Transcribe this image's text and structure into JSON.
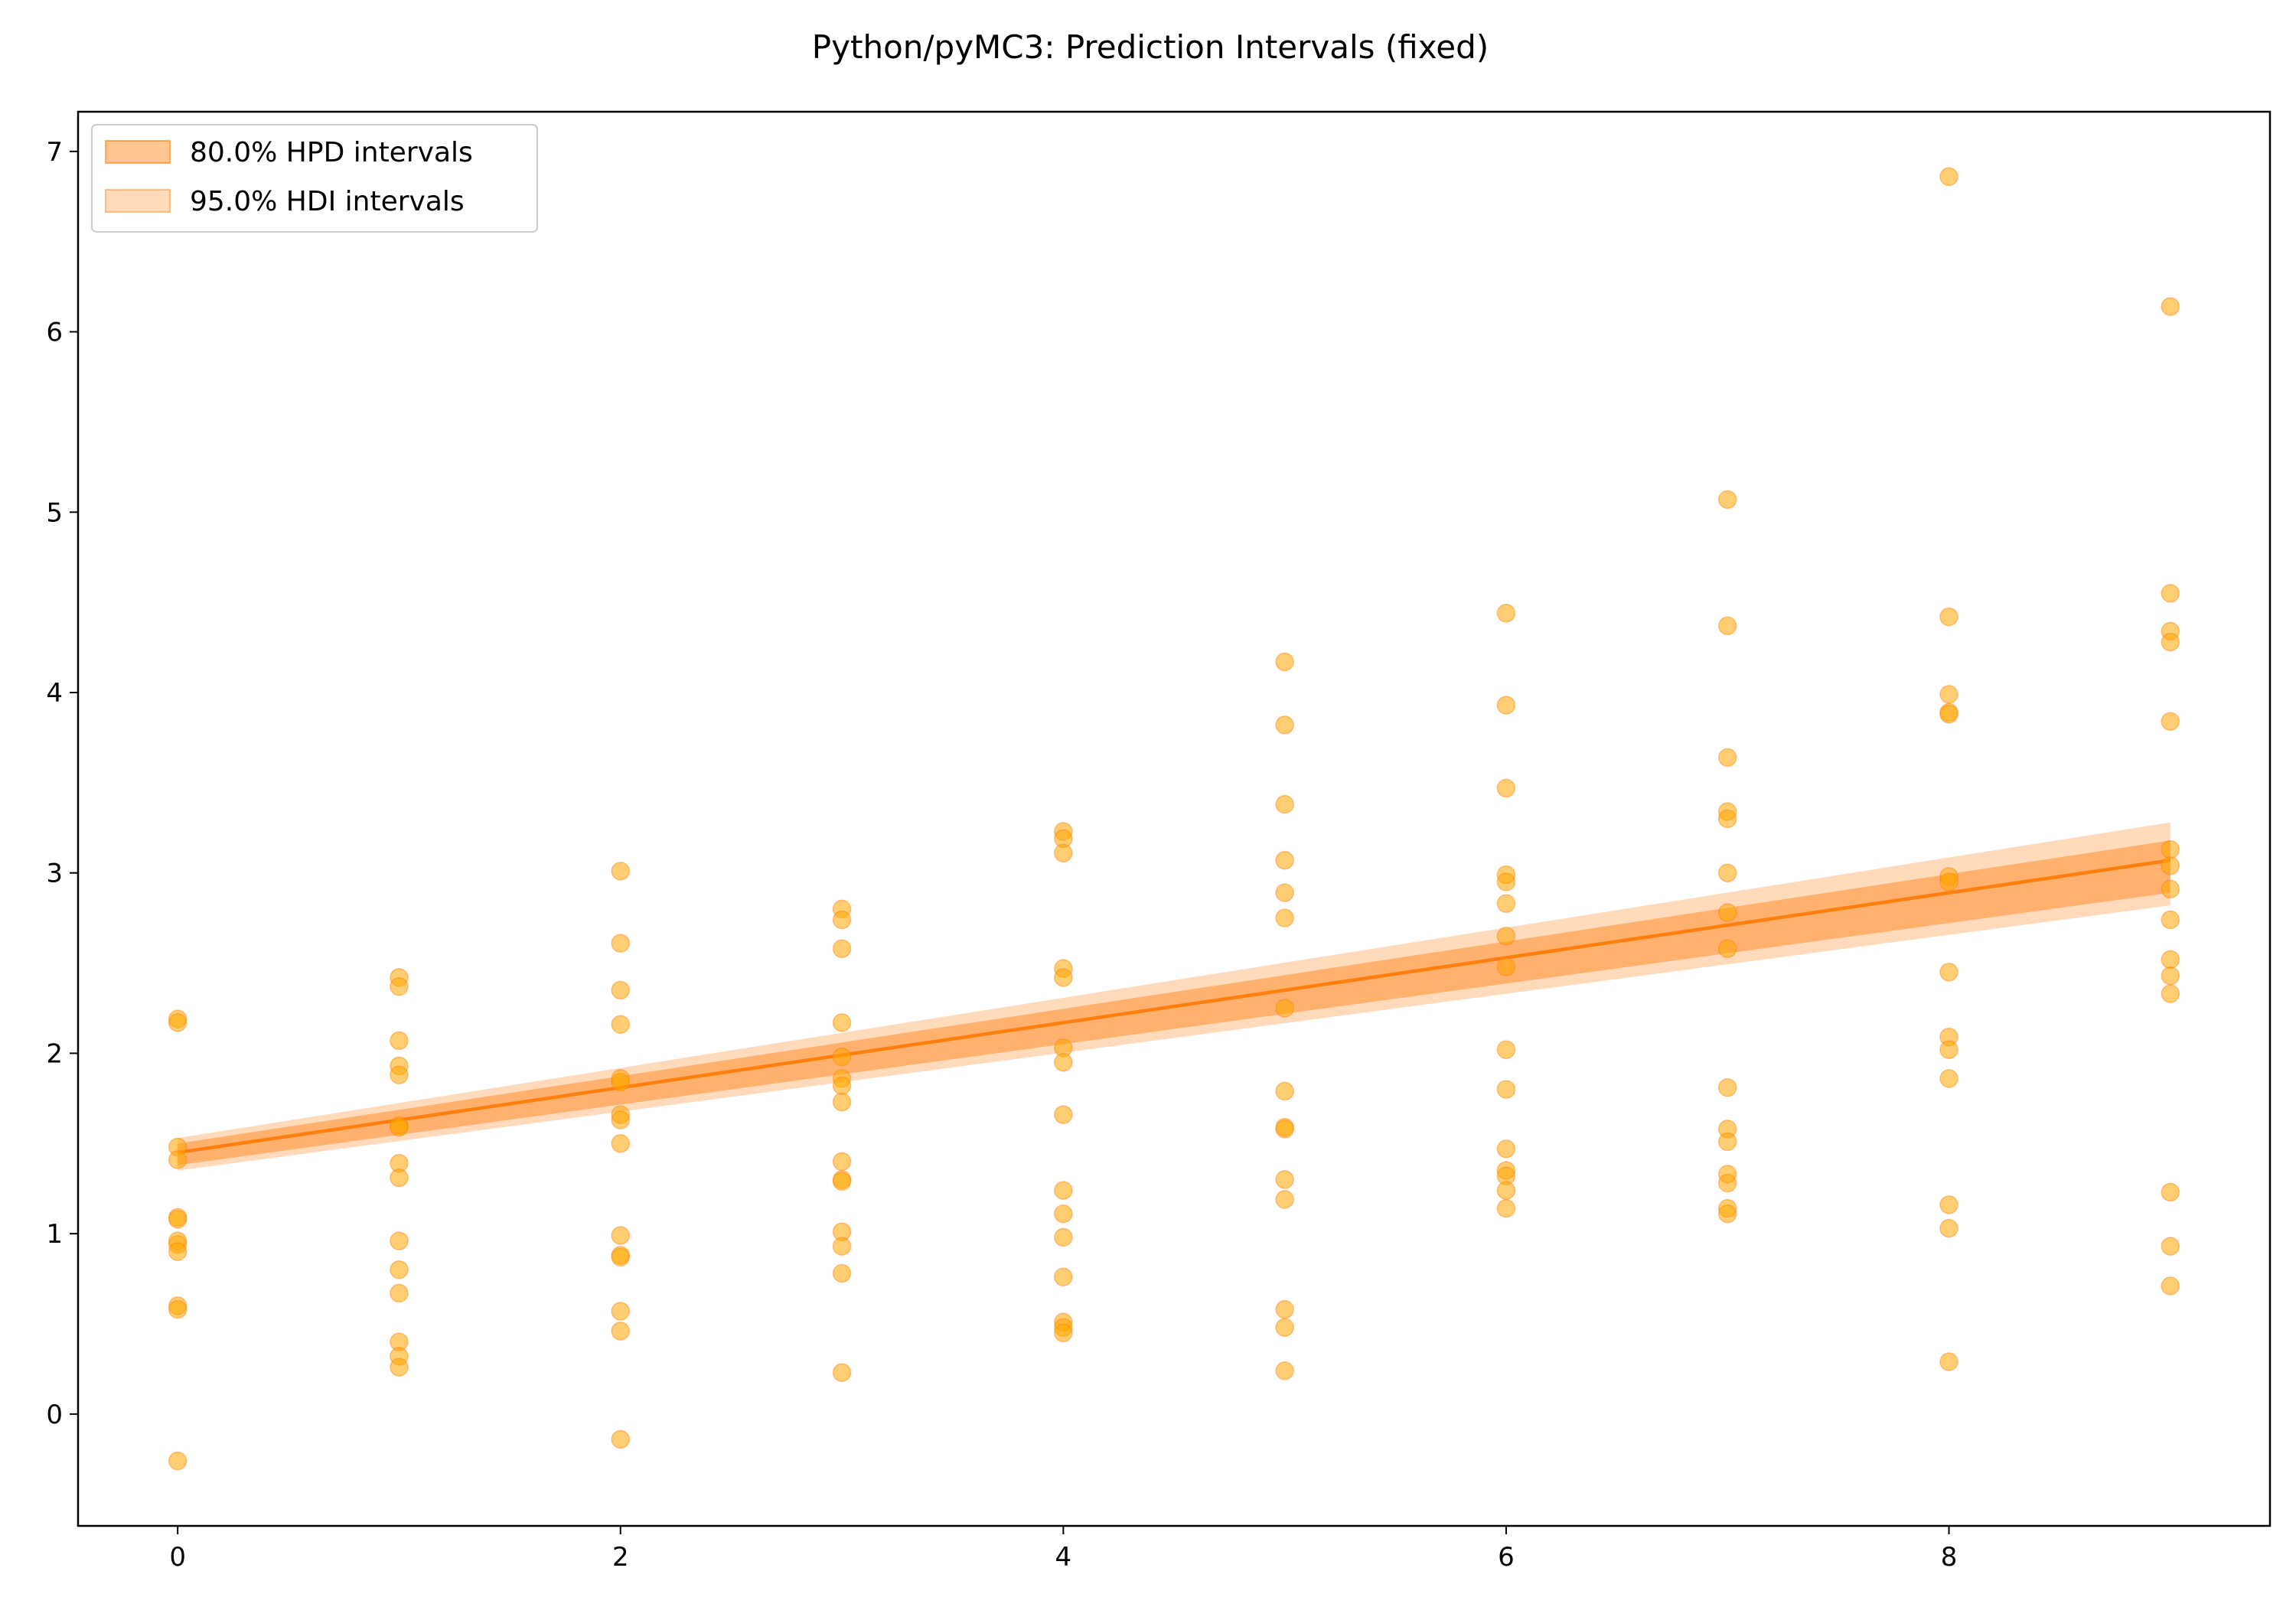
{
  "colors": {
    "accent": "#ff7f0e",
    "point_fill": "#ffa500",
    "hpd_fill": "#ff7f0e",
    "hdi_fill": "#ff9940",
    "axis": "#000000",
    "background": "#ffffff"
  },
  "chart_data": {
    "type": "scatter",
    "title": "Python/pyMC3: Prediction Intervals (fixed)",
    "xlabel": "",
    "ylabel": "",
    "xlim": [
      -0.45,
      9.45
    ],
    "ylim": [
      -0.62,
      7.22
    ],
    "x_ticks": [
      0,
      2,
      4,
      6,
      8
    ],
    "y_ticks": [
      0,
      1,
      2,
      3,
      4,
      5,
      6,
      7
    ],
    "grid": false,
    "legend_position": "top-left",
    "legend": [
      {
        "label": "80.0% HPD intervals",
        "color": "#ff7f0e"
      },
      {
        "label": "95.0% HDI intervals",
        "color": "#ff9940"
      }
    ],
    "points": [
      {
        "x": 0,
        "y": 2.19
      },
      {
        "x": 0,
        "y": 2.17
      },
      {
        "x": 0,
        "y": 1.48
      },
      {
        "x": 0,
        "y": 1.41
      },
      {
        "x": 0,
        "y": 1.09
      },
      {
        "x": 0,
        "y": 1.08
      },
      {
        "x": 0,
        "y": 0.96
      },
      {
        "x": 0,
        "y": 0.94
      },
      {
        "x": 0,
        "y": 0.9
      },
      {
        "x": 0,
        "y": 0.6
      },
      {
        "x": 0,
        "y": 0.58
      },
      {
        "x": 0,
        "y": -0.26
      },
      {
        "x": 1,
        "y": 2.42
      },
      {
        "x": 1,
        "y": 2.37
      },
      {
        "x": 1,
        "y": 2.07
      },
      {
        "x": 1,
        "y": 1.93
      },
      {
        "x": 1,
        "y": 1.88
      },
      {
        "x": 1,
        "y": 1.6
      },
      {
        "x": 1,
        "y": 1.59
      },
      {
        "x": 1,
        "y": 1.39
      },
      {
        "x": 1,
        "y": 1.31
      },
      {
        "x": 1,
        "y": 0.96
      },
      {
        "x": 1,
        "y": 0.8
      },
      {
        "x": 1,
        "y": 0.67
      },
      {
        "x": 1,
        "y": 0.4
      },
      {
        "x": 1,
        "y": 0.32
      },
      {
        "x": 1,
        "y": 0.26
      },
      {
        "x": 2,
        "y": 3.01
      },
      {
        "x": 2,
        "y": 2.61
      },
      {
        "x": 2,
        "y": 2.35
      },
      {
        "x": 2,
        "y": 2.16
      },
      {
        "x": 2,
        "y": 1.86
      },
      {
        "x": 2,
        "y": 1.84
      },
      {
        "x": 2,
        "y": 1.66
      },
      {
        "x": 2,
        "y": 1.63
      },
      {
        "x": 2,
        "y": 1.5
      },
      {
        "x": 2,
        "y": 0.99
      },
      {
        "x": 2,
        "y": 0.88
      },
      {
        "x": 2,
        "y": 0.87
      },
      {
        "x": 2,
        "y": 0.57
      },
      {
        "x": 2,
        "y": 0.46
      },
      {
        "x": 2,
        "y": -0.14
      },
      {
        "x": 3,
        "y": 2.8
      },
      {
        "x": 3,
        "y": 2.74
      },
      {
        "x": 3,
        "y": 2.58
      },
      {
        "x": 3,
        "y": 2.17
      },
      {
        "x": 3,
        "y": 1.98
      },
      {
        "x": 3,
        "y": 1.86
      },
      {
        "x": 3,
        "y": 1.82
      },
      {
        "x": 3,
        "y": 1.73
      },
      {
        "x": 3,
        "y": 1.4
      },
      {
        "x": 3,
        "y": 1.3
      },
      {
        "x": 3,
        "y": 1.29
      },
      {
        "x": 3,
        "y": 1.01
      },
      {
        "x": 3,
        "y": 0.93
      },
      {
        "x": 3,
        "y": 0.78
      },
      {
        "x": 3,
        "y": 0.23
      },
      {
        "x": 4,
        "y": 3.23
      },
      {
        "x": 4,
        "y": 3.19
      },
      {
        "x": 4,
        "y": 3.11
      },
      {
        "x": 4,
        "y": 2.47
      },
      {
        "x": 4,
        "y": 2.42
      },
      {
        "x": 4,
        "y": 2.03
      },
      {
        "x": 4,
        "y": 1.95
      },
      {
        "x": 4,
        "y": 1.66
      },
      {
        "x": 4,
        "y": 1.24
      },
      {
        "x": 4,
        "y": 1.11
      },
      {
        "x": 4,
        "y": 0.98
      },
      {
        "x": 4,
        "y": 0.76
      },
      {
        "x": 4,
        "y": 0.51
      },
      {
        "x": 4,
        "y": 0.48
      },
      {
        "x": 4,
        "y": 0.45
      },
      {
        "x": 5,
        "y": 4.17
      },
      {
        "x": 5,
        "y": 3.82
      },
      {
        "x": 5,
        "y": 3.38
      },
      {
        "x": 5,
        "y": 3.07
      },
      {
        "x": 5,
        "y": 2.89
      },
      {
        "x": 5,
        "y": 2.75
      },
      {
        "x": 5,
        "y": 2.25
      },
      {
        "x": 5,
        "y": 1.79
      },
      {
        "x": 5,
        "y": 1.59
      },
      {
        "x": 5,
        "y": 1.58
      },
      {
        "x": 5,
        "y": 1.3
      },
      {
        "x": 5,
        "y": 1.19
      },
      {
        "x": 5,
        "y": 0.58
      },
      {
        "x": 5,
        "y": 0.48
      },
      {
        "x": 5,
        "y": 0.24
      },
      {
        "x": 6,
        "y": 4.44
      },
      {
        "x": 6,
        "y": 3.93
      },
      {
        "x": 6,
        "y": 3.47
      },
      {
        "x": 6,
        "y": 2.99
      },
      {
        "x": 6,
        "y": 2.95
      },
      {
        "x": 6,
        "y": 2.83
      },
      {
        "x": 6,
        "y": 2.65
      },
      {
        "x": 6,
        "y": 2.48
      },
      {
        "x": 6,
        "y": 2.02
      },
      {
        "x": 6,
        "y": 1.8
      },
      {
        "x": 6,
        "y": 1.47
      },
      {
        "x": 6,
        "y": 1.35
      },
      {
        "x": 6,
        "y": 1.32
      },
      {
        "x": 6,
        "y": 1.24
      },
      {
        "x": 6,
        "y": 1.14
      },
      {
        "x": 7,
        "y": 5.07
      },
      {
        "x": 7,
        "y": 4.37
      },
      {
        "x": 7,
        "y": 3.64
      },
      {
        "x": 7,
        "y": 3.34
      },
      {
        "x": 7,
        "y": 3.3
      },
      {
        "x": 7,
        "y": 3.0
      },
      {
        "x": 7,
        "y": 2.78
      },
      {
        "x": 7,
        "y": 2.58
      },
      {
        "x": 7,
        "y": 1.81
      },
      {
        "x": 7,
        "y": 1.58
      },
      {
        "x": 7,
        "y": 1.51
      },
      {
        "x": 7,
        "y": 1.33
      },
      {
        "x": 7,
        "y": 1.28
      },
      {
        "x": 7,
        "y": 1.14
      },
      {
        "x": 7,
        "y": 1.11
      },
      {
        "x": 8,
        "y": 6.86
      },
      {
        "x": 8,
        "y": 4.42
      },
      {
        "x": 8,
        "y": 3.99
      },
      {
        "x": 8,
        "y": 3.89
      },
      {
        "x": 8,
        "y": 3.88
      },
      {
        "x": 8,
        "y": 2.98
      },
      {
        "x": 8,
        "y": 2.95
      },
      {
        "x": 8,
        "y": 2.45
      },
      {
        "x": 8,
        "y": 2.09
      },
      {
        "x": 8,
        "y": 2.02
      },
      {
        "x": 8,
        "y": 1.86
      },
      {
        "x": 8,
        "y": 1.16
      },
      {
        "x": 8,
        "y": 1.03
      },
      {
        "x": 8,
        "y": 0.29
      },
      {
        "x": 9,
        "y": 6.14
      },
      {
        "x": 9,
        "y": 4.55
      },
      {
        "x": 9,
        "y": 4.34
      },
      {
        "x": 9,
        "y": 4.28
      },
      {
        "x": 9,
        "y": 3.84
      },
      {
        "x": 9,
        "y": 3.13
      },
      {
        "x": 9,
        "y": 3.04
      },
      {
        "x": 9,
        "y": 2.91
      },
      {
        "x": 9,
        "y": 2.74
      },
      {
        "x": 9,
        "y": 2.52
      },
      {
        "x": 9,
        "y": 2.43
      },
      {
        "x": 9,
        "y": 2.33
      },
      {
        "x": 9,
        "y": 1.23
      },
      {
        "x": 9,
        "y": 0.93
      },
      {
        "x": 9,
        "y": 0.71
      }
    ],
    "mean_line": {
      "x": [
        0,
        9
      ],
      "y": [
        1.45,
        3.07
      ]
    },
    "hpd_80": {
      "x": [
        0,
        9
      ],
      "lower": [
        1.38,
        2.89
      ],
      "upper": [
        1.5,
        3.18
      ]
    },
    "hdi_95": {
      "x": [
        0,
        9
      ],
      "lower": [
        1.35,
        2.82
      ],
      "upper": [
        1.53,
        3.28
      ]
    }
  }
}
